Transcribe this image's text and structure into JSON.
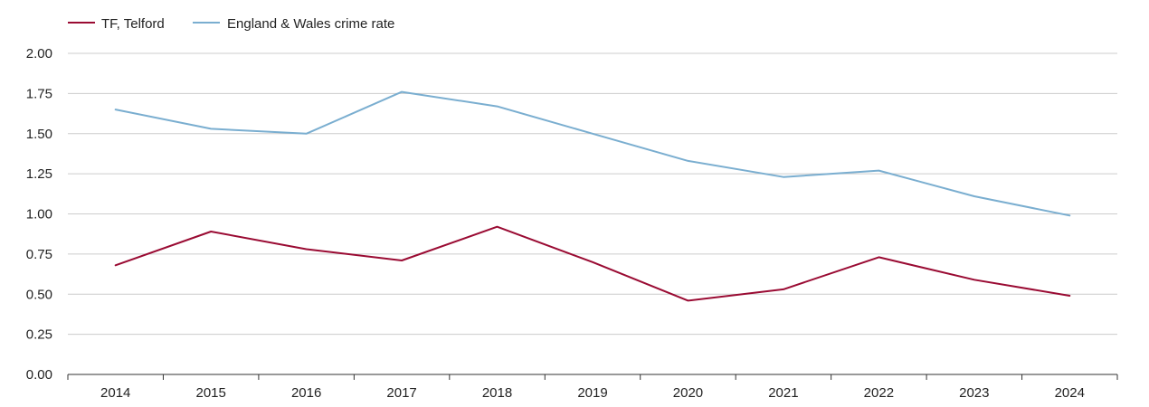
{
  "chart_data": {
    "type": "line",
    "title": "",
    "xlabel": "",
    "ylabel": "",
    "x": [
      2014,
      2015,
      2016,
      2017,
      2018,
      2019,
      2020,
      2021,
      2022,
      2023,
      2024
    ],
    "x_tick_labels": [
      "2014",
      "2015",
      "2016",
      "2017",
      "2018",
      "2019",
      "2020",
      "2021",
      "2022",
      "2023",
      "2024"
    ],
    "ylim": [
      0,
      2
    ],
    "y_ticks": [
      0,
      0.25,
      0.5,
      0.75,
      1.0,
      1.25,
      1.5,
      1.75,
      2.0
    ],
    "y_tick_labels": [
      "0.00",
      "0.25",
      "0.50",
      "0.75",
      "1.00",
      "1.25",
      "1.50",
      "1.75",
      "2.00"
    ],
    "grid": true,
    "legend_position": "top-left",
    "series": [
      {
        "name": "TF, Telford",
        "color": "#9a0b33",
        "values": [
          0.68,
          0.89,
          0.78,
          0.71,
          0.92,
          0.7,
          0.46,
          0.53,
          0.73,
          0.59,
          0.49
        ]
      },
      {
        "name": "England & Wales crime rate",
        "color": "#7aaed0",
        "values": [
          1.65,
          1.53,
          1.5,
          1.76,
          1.67,
          1.5,
          1.33,
          1.23,
          1.27,
          1.11,
          0.99
        ]
      }
    ],
    "gridline_color": "#cccccc",
    "axis_color": "#333333"
  }
}
